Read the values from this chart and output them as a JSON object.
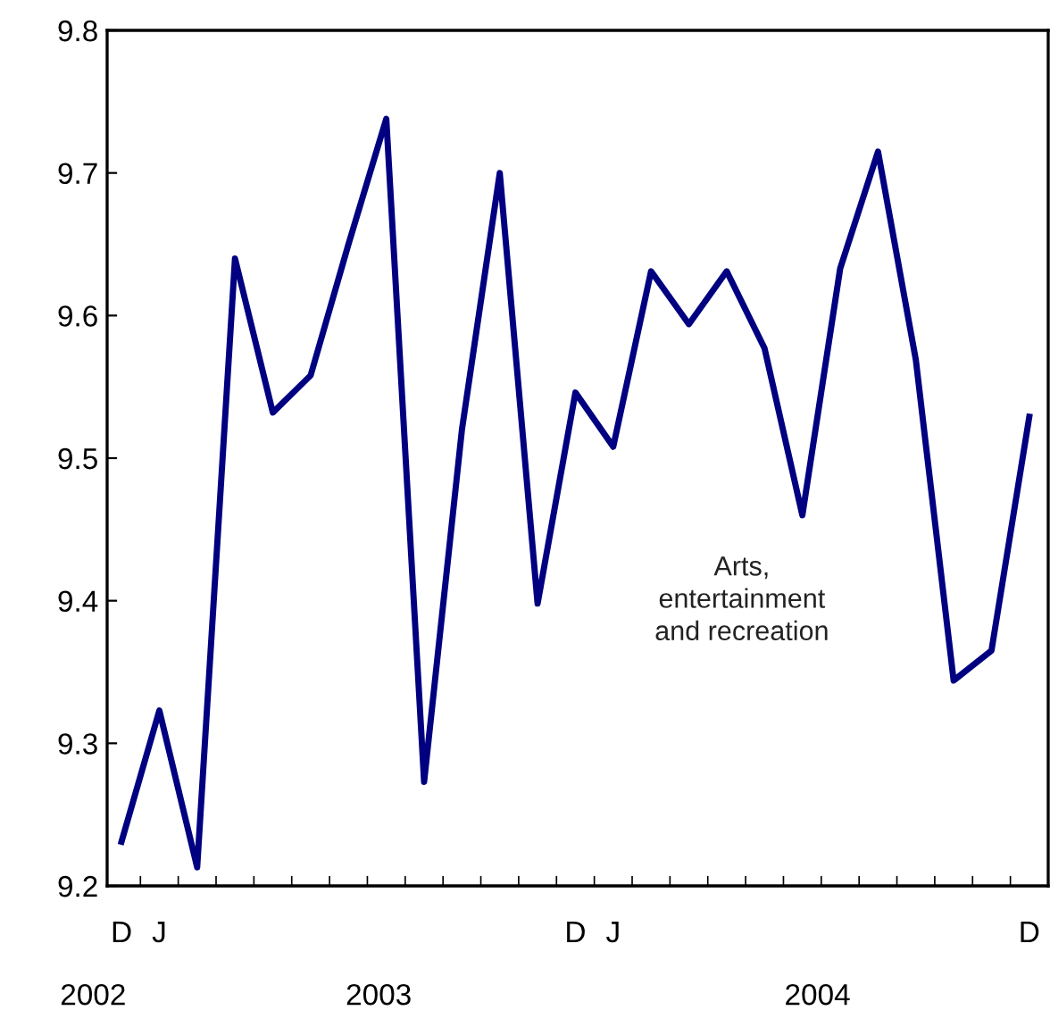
{
  "chart_data": {
    "type": "line",
    "categories": [
      "D",
      "J",
      null,
      null,
      null,
      null,
      null,
      null,
      null,
      null,
      null,
      null,
      "D",
      "J",
      null,
      null,
      null,
      null,
      null,
      null,
      null,
      null,
      null,
      null,
      "D"
    ],
    "series": [
      {
        "name": "Arts,\nentertainment\nand recreation",
        "color": "#000080",
        "values": [
          9.231,
          9.323,
          9.213,
          9.64,
          9.532,
          9.558,
          9.65,
          9.738,
          9.273,
          9.52,
          9.7,
          9.398,
          9.546,
          9.508,
          9.631,
          9.594,
          9.631,
          9.577,
          9.46,
          9.633,
          9.715,
          9.569,
          9.344,
          9.365,
          9.529
        ]
      }
    ],
    "ylim": [
      9.2,
      9.8
    ],
    "yticks": [
      9.2,
      9.3,
      9.4,
      9.5,
      9.6,
      9.7,
      9.8
    ],
    "annotations": [
      "2002",
      "2003",
      "2004"
    ],
    "grid": false,
    "legend": false,
    "marker": "none",
    "line_style": "solid"
  }
}
